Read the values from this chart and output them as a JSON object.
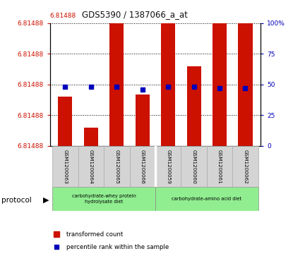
{
  "title": "GDS5390 / 1387066_a_at",
  "title_red_part": "6.81488",
  "samples": [
    "GSM1200063",
    "GSM1200064",
    "GSM1200065",
    "GSM1200066",
    "GSM1200059",
    "GSM1200060",
    "GSM1200061",
    "GSM1200062"
  ],
  "bar_heights_pct": [
    40,
    15,
    100,
    42,
    100,
    65,
    100,
    100
  ],
  "blue_sq_pct": [
    48,
    48,
    48,
    46,
    48,
    48,
    47,
    47
  ],
  "y_left_labels": [
    "6.81488",
    "6.81488",
    "6.81488",
    "6.81488",
    "6.81488"
  ],
  "y_right_labels": [
    "0",
    "25",
    "50",
    "75",
    "100%"
  ],
  "y_right_ticks": [
    0,
    25,
    50,
    75,
    100
  ],
  "protocol_groups": [
    {
      "label": "carbohydrate-whey protein\nhydrolysate diet",
      "samples_idx": [
        0,
        1,
        2,
        3
      ],
      "color": "#90EE90"
    },
    {
      "label": "carbohydrate-amino acid diet",
      "samples_idx": [
        4,
        5,
        6,
        7
      ],
      "color": "#90EE90"
    }
  ],
  "legend_red": "transformed count",
  "legend_blue": "percentile rank within the sample",
  "protocol_label": "protocol",
  "bar_color": "#cc1100",
  "square_color": "#0000bb",
  "left_axis_color": "#cc1100",
  "right_axis_color": "#0000bb",
  "sample_box_color": "#d4d4d4",
  "title_red_color": "#cc1100",
  "title_black_color": "#111111"
}
